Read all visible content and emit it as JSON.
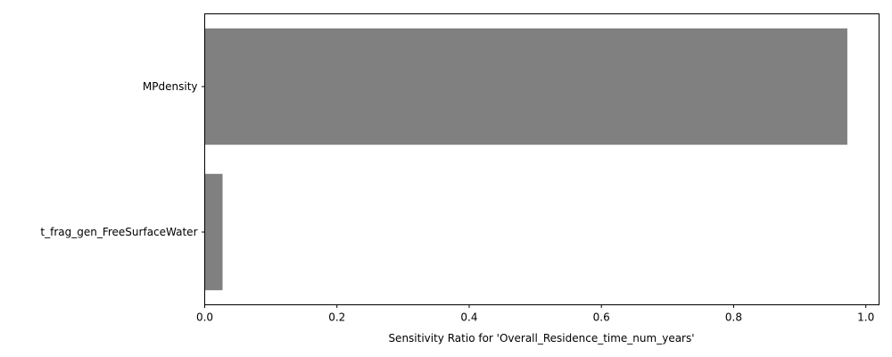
{
  "chart_data": {
    "type": "bar",
    "orientation": "horizontal",
    "categories": [
      "MPdensity",
      "t_frag_gen_FreeSurfaceWater"
    ],
    "values": [
      0.972,
      0.027
    ],
    "title": "",
    "xlabel": "Sensitivity Ratio for 'Overall_Residence_time_num_years'",
    "ylabel": "",
    "xlim": [
      0.0,
      1.02
    ],
    "xticks": [
      0.0,
      0.2,
      0.4,
      0.6,
      0.8,
      1.0
    ],
    "xtick_labels": [
      "0.0",
      "0.2",
      "0.4",
      "0.6",
      "0.8",
      "1.0"
    ],
    "grid": false,
    "bar_color": "#808080"
  }
}
